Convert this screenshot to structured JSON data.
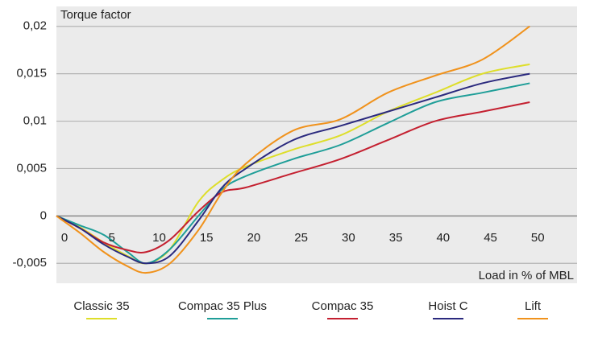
{
  "chart_data": {
    "type": "line",
    "y_label": "Torque factor",
    "x_label": "Load in % of MBL",
    "x": [
      0,
      2.5,
      5,
      7.5,
      9.5,
      12,
      15,
      17.5,
      20,
      25,
      30,
      35,
      40,
      45,
      50
    ],
    "series": [
      {
        "name": "Classic 35",
        "color": "#dede2a",
        "values": [
          0,
          -0.0012,
          -0.0028,
          -0.0042,
          -0.005,
          -0.0035,
          0.0015,
          0.0038,
          0.0052,
          0.007,
          0.0085,
          0.011,
          0.013,
          0.015,
          0.016
        ]
      },
      {
        "name": "Compac 35 Plus",
        "color": "#1f9e98",
        "values": [
          0,
          -0.001,
          -0.002,
          -0.0038,
          -0.005,
          -0.0035,
          0.0,
          0.0028,
          0.0042,
          0.006,
          0.0075,
          0.0098,
          0.012,
          0.013,
          0.014
        ]
      },
      {
        "name": "Compac 35",
        "color": "#c42030",
        "values": [
          0,
          -0.0013,
          -0.0028,
          -0.0036,
          -0.0038,
          -0.0025,
          0.0005,
          0.0025,
          0.003,
          0.0045,
          0.006,
          0.008,
          0.01,
          0.011,
          0.012
        ]
      },
      {
        "name": "Hoist C",
        "color": "#2b2a7e",
        "values": [
          0,
          -0.0013,
          -0.003,
          -0.0043,
          -0.005,
          -0.0042,
          -0.0005,
          0.003,
          0.005,
          0.008,
          0.0095,
          0.011,
          0.0125,
          0.014,
          0.015
        ]
      },
      {
        "name": "Lift",
        "color": "#f0921c",
        "values": [
          0,
          -0.0018,
          -0.0038,
          -0.0053,
          -0.006,
          -0.005,
          -0.0015,
          0.0025,
          0.0055,
          0.009,
          0.0102,
          0.013,
          0.0148,
          0.0165,
          0.02
        ]
      }
    ],
    "xlim": [
      0,
      55
    ],
    "xticks": [
      0,
      5,
      10,
      15,
      20,
      25,
      30,
      35,
      40,
      45,
      50
    ],
    "ylim": [
      -0.0071,
      0.0221
    ],
    "yticks": [
      {
        "value": -0.005,
        "label": "-0,005"
      },
      0,
      {
        "value": 0.005,
        "label": "0,005"
      },
      {
        "value": 0.01,
        "label": "0,01"
      },
      {
        "value": 0.015,
        "label": "0,015"
      },
      {
        "value": 0.02,
        "label": "0,02"
      }
    ],
    "grid": true
  }
}
